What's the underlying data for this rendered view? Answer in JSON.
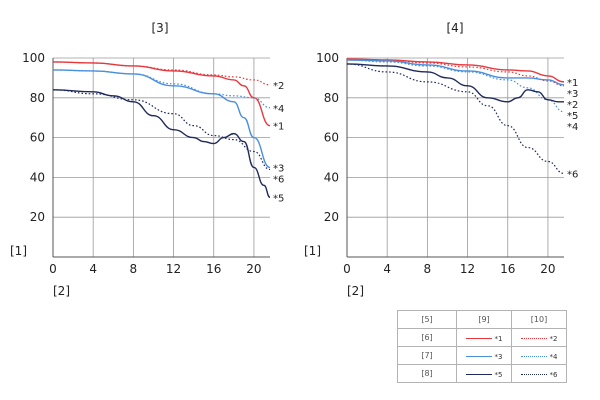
{
  "legend": {
    "header": [
      "[5]",
      "[9]",
      "[10]"
    ],
    "rows": [
      {
        "label": "[6]",
        "color": "#e8383d",
        "solid_tag": "*1",
        "dotted_tag": "*2"
      },
      {
        "label": "[7]",
        "color": "#4a8fde",
        "solid_tag": "*3",
        "dotted_tag": "*4"
      },
      {
        "label": "[8]",
        "color": "#1f2a5c",
        "solid_tag": "*5",
        "dotted_tag": "*6"
      }
    ]
  },
  "chart_data": [
    {
      "type": "line",
      "title": "[3]",
      "ylabel": "[1]",
      "xlabel": "[2]",
      "xlim": [
        0,
        21.6
      ],
      "ylim": [
        0,
        100
      ],
      "xticks": [
        0,
        4,
        8,
        12,
        16,
        20
      ],
      "yticks": [
        20,
        40,
        60,
        80,
        100
      ],
      "grid": true,
      "series": [
        {
          "name": "*1",
          "color": "#e8383d",
          "style": "solid",
          "x": [
            0,
            4,
            8,
            12,
            16,
            18,
            19,
            20,
            21.6
          ],
          "y": [
            98,
            97.5,
            96,
            93.5,
            91,
            89,
            86,
            80,
            66
          ]
        },
        {
          "name": "*2",
          "color": "#e8383d",
          "style": "dotted",
          "x": [
            0,
            4,
            8,
            12,
            16,
            18,
            20,
            21.6
          ],
          "y": [
            98,
            97.5,
            96,
            94,
            91.5,
            90.5,
            89,
            86.5
          ]
        },
        {
          "name": "*3",
          "color": "#4a8fde",
          "style": "solid",
          "x": [
            0,
            4,
            8,
            12,
            16,
            18,
            19,
            20,
            21.6
          ],
          "y": [
            94,
            93.5,
            92,
            86,
            82,
            78,
            70,
            60,
            45
          ]
        },
        {
          "name": "*4",
          "color": "#4a8fde",
          "style": "dotted",
          "x": [
            0,
            4,
            8,
            12,
            16,
            18,
            20,
            21.6
          ],
          "y": [
            94,
            93.5,
            92,
            87,
            82,
            81,
            80,
            75
          ]
        },
        {
          "name": "*5",
          "color": "#1f2a5c",
          "style": "solid",
          "x": [
            0,
            4,
            6,
            8,
            10,
            12,
            14,
            15,
            16,
            17,
            18,
            19,
            20,
            21,
            21.6
          ],
          "y": [
            84,
            83,
            81,
            78,
            71,
            64,
            60,
            58,
            57,
            60,
            62,
            58,
            45,
            36,
            30
          ]
        },
        {
          "name": "*6",
          "color": "#1f2a5c",
          "style": "dotted",
          "x": [
            0,
            4,
            8,
            12,
            14,
            16,
            18,
            20,
            21.6
          ],
          "y": [
            84,
            82,
            79,
            72,
            66,
            61,
            59,
            53,
            44
          ]
        }
      ]
    },
    {
      "type": "line",
      "title": "[4]",
      "ylabel": "[1]",
      "xlabel": "[2]",
      "xlim": [
        0,
        21.6
      ],
      "ylim": [
        0,
        100
      ],
      "xticks": [
        0,
        4,
        8,
        12,
        16,
        20
      ],
      "yticks": [
        20,
        40,
        60,
        80,
        100
      ],
      "grid": true,
      "series": [
        {
          "name": "*1",
          "color": "#e8383d",
          "style": "solid",
          "x": [
            0,
            4,
            8,
            12,
            16,
            18,
            20,
            21.6
          ],
          "y": [
            99.5,
            99,
            98,
            96.5,
            94,
            93.5,
            91,
            88
          ]
        },
        {
          "name": "*2",
          "color": "#e8383d",
          "style": "dotted",
          "x": [
            0,
            4,
            8,
            12,
            16,
            18,
            20,
            21.6
          ],
          "y": [
            99.5,
            99,
            97.5,
            95.5,
            93,
            91,
            88.5,
            86
          ]
        },
        {
          "name": "*3",
          "color": "#4a8fde",
          "style": "solid",
          "x": [
            0,
            4,
            8,
            12,
            16,
            18,
            20,
            21.6
          ],
          "y": [
            99,
            98.5,
            96.5,
            93.5,
            90,
            90,
            89,
            86.5
          ]
        },
        {
          "name": "*4",
          "color": "#4a8fde",
          "style": "dotted",
          "x": [
            0,
            4,
            8,
            12,
            16,
            18,
            20,
            21.6
          ],
          "y": [
            99,
            98,
            96,
            93,
            89,
            85,
            79,
            73
          ]
        },
        {
          "name": "*5",
          "color": "#1f2a5c",
          "style": "solid",
          "x": [
            0,
            4,
            8,
            10,
            12,
            14,
            16,
            17,
            18,
            19,
            20,
            21,
            21.6
          ],
          "y": [
            97,
            96,
            93,
            90,
            86,
            80,
            78,
            80,
            84,
            83,
            79,
            78,
            78
          ]
        },
        {
          "name": "*6",
          "color": "#1f2a5c",
          "style": "dotted",
          "x": [
            0,
            4,
            8,
            12,
            14,
            16,
            18,
            20,
            21.6
          ],
          "y": [
            97,
            93,
            88,
            83,
            76,
            66,
            55,
            48,
            42
          ]
        }
      ]
    }
  ]
}
